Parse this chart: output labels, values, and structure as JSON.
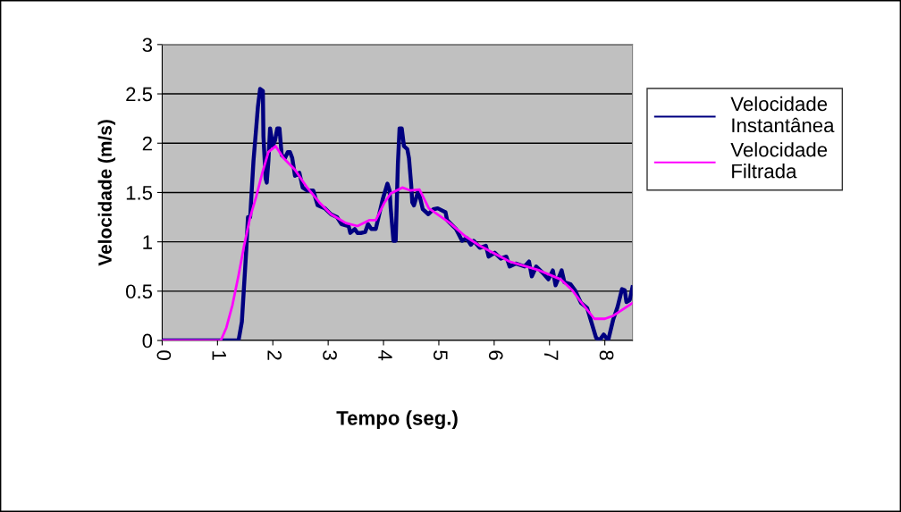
{
  "chart_data": {
    "type": "line",
    "xlabel": "Tempo (seg.)",
    "ylabel": "Velocidade (m/s)",
    "xlim": [
      0,
      8.5
    ],
    "xticks": [
      0,
      1,
      2,
      3,
      4,
      5,
      6,
      7,
      8
    ],
    "ylim": [
      0,
      3
    ],
    "yticks": [
      0,
      0.5,
      1,
      1.5,
      2,
      2.5,
      3
    ],
    "grid": "y",
    "legend": "right",
    "marker": "none",
    "line_style": "solid",
    "series": [
      {
        "name": "Velocidade Instantânea",
        "color": "#000080",
        "x": [
          0,
          1.38,
          1.44,
          1.52,
          1.55,
          1.59,
          1.65,
          1.7,
          1.73,
          1.77,
          1.82,
          1.83,
          1.87,
          1.89,
          1.92,
          1.95,
          2.0,
          2.04,
          2.08,
          2.12,
          2.16,
          2.22,
          2.27,
          2.31,
          2.35,
          2.4,
          2.48,
          2.54,
          2.62,
          2.73,
          2.81,
          2.94,
          3.05,
          3.16,
          3.24,
          3.37,
          3.4,
          3.48,
          3.53,
          3.59,
          3.67,
          3.72,
          3.78,
          3.86,
          3.91,
          3.99,
          4.07,
          4.11,
          4.13,
          4.18,
          4.22,
          4.26,
          4.29,
          4.33,
          4.37,
          4.43,
          4.46,
          4.5,
          4.52,
          4.55,
          4.63,
          4.71,
          4.81,
          4.9,
          4.98,
          5.12,
          5.15,
          5.31,
          5.42,
          5.5,
          5.58,
          5.63,
          5.74,
          5.85,
          5.9,
          6.01,
          6.12,
          6.22,
          6.28,
          6.39,
          6.55,
          6.63,
          6.68,
          6.76,
          6.87,
          6.98,
          7.06,
          7.11,
          7.22,
          7.27,
          7.38,
          7.46,
          7.57,
          7.68,
          7.76,
          7.84,
          7.9,
          7.98,
          8.06,
          8.15,
          8.23,
          8.31,
          8.36,
          8.39,
          8.45,
          8.5
        ],
        "values": [
          0,
          0,
          0.19,
          0.92,
          1.25,
          1.25,
          1.82,
          2.16,
          2.37,
          2.55,
          2.53,
          2.07,
          1.64,
          1.6,
          1.82,
          2.15,
          1.97,
          2.03,
          2.15,
          2.15,
          1.88,
          1.85,
          1.91,
          1.91,
          1.85,
          1.67,
          1.7,
          1.55,
          1.52,
          1.52,
          1.37,
          1.34,
          1.28,
          1.25,
          1.18,
          1.16,
          1.09,
          1.13,
          1.09,
          1.09,
          1.1,
          1.18,
          1.13,
          1.13,
          1.25,
          1.44,
          1.59,
          1.52,
          1.34,
          1.01,
          1.01,
          1.79,
          2.15,
          2.15,
          1.97,
          1.94,
          1.85,
          1.58,
          1.4,
          1.37,
          1.52,
          1.33,
          1.28,
          1.33,
          1.34,
          1.3,
          1.22,
          1.13,
          1.01,
          1.04,
          0.97,
          1.01,
          0.94,
          0.96,
          0.85,
          0.89,
          0.83,
          0.85,
          0.75,
          0.78,
          0.75,
          0.8,
          0.65,
          0.75,
          0.69,
          0.62,
          0.71,
          0.56,
          0.71,
          0.59,
          0.57,
          0.51,
          0.38,
          0.33,
          0.18,
          0.03,
          0,
          0.06,
          0,
          0.21,
          0.34,
          0.52,
          0.51,
          0.39,
          0.41,
          0.54
        ]
      },
      {
        "name": "Velocidade Filtrada",
        "color": "#ff00ff",
        "x": [
          0,
          1.06,
          1.16,
          1.27,
          1.38,
          1.48,
          1.59,
          1.7,
          1.81,
          1.92,
          2.05,
          2.19,
          2.4,
          2.62,
          2.84,
          3.05,
          3.32,
          3.53,
          3.75,
          3.86,
          4.02,
          4.13,
          4.34,
          4.49,
          4.65,
          4.82,
          5.2,
          5.47,
          5.74,
          6.28,
          6.82,
          7.2,
          7.41,
          7.57,
          7.81,
          8.0,
          8.15,
          8.31,
          8.5
        ],
        "values": [
          0,
          0,
          0.13,
          0.36,
          0.66,
          0.96,
          1.25,
          1.46,
          1.7,
          1.91,
          1.97,
          1.85,
          1.73,
          1.55,
          1.4,
          1.28,
          1.19,
          1.16,
          1.22,
          1.22,
          1.4,
          1.49,
          1.55,
          1.52,
          1.53,
          1.34,
          1.19,
          1.06,
          0.96,
          0.8,
          0.71,
          0.62,
          0.51,
          0.39,
          0.22,
          0.22,
          0.25,
          0.31,
          0.38
        ]
      }
    ]
  }
}
